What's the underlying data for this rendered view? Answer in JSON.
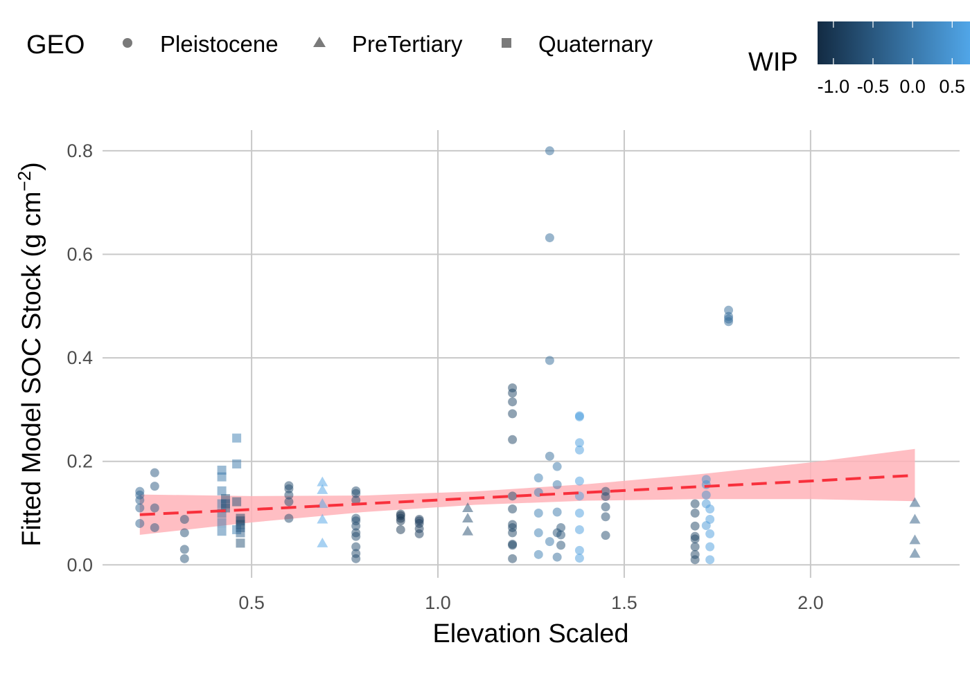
{
  "chart_data": {
    "type": "scatter",
    "xlabel": "Elevation Scaled",
    "ylabel_main": "Fitted Model SOC Stock (g cm",
    "ylabel_sup": "−2",
    "ylabel_close": ")",
    "xlim": [
      0.1,
      2.4
    ],
    "ylim": [
      -0.025,
      0.84
    ],
    "x_ticks": [
      {
        "v": 0.5,
        "label": "0.5"
      },
      {
        "v": 1.0,
        "label": "1.0"
      },
      {
        "v": 1.5,
        "label": "1.5"
      },
      {
        "v": 2.0,
        "label": "2.0"
      }
    ],
    "y_ticks": [
      {
        "v": 0.0,
        "label": "0.0"
      },
      {
        "v": 0.2,
        "label": "0.2"
      },
      {
        "v": 0.4,
        "label": "0.4"
      },
      {
        "v": 0.6,
        "label": "0.6"
      },
      {
        "v": 0.8,
        "label": "0.8"
      }
    ],
    "grid": true,
    "legend": {
      "position": "top",
      "shape_title": "GEO",
      "shape_entries": [
        {
          "label": "Pleistocene",
          "shape": "circle"
        },
        {
          "label": "PreTertiary",
          "shape": "triangle"
        },
        {
          "label": "Quaternary",
          "shape": "square"
        }
      ],
      "color_title": "WIP",
      "color_ticks": [
        {
          "v": -1.0,
          "label": "-1.0"
        },
        {
          "v": -0.5,
          "label": "-0.5"
        },
        {
          "v": 0.0,
          "label": "0.0"
        },
        {
          "v": 0.5,
          "label": "0.5"
        }
      ],
      "color_range": [
        -1.2,
        0.9
      ]
    },
    "colors": {
      "low": "#132B43",
      "high": "#56B1F7",
      "trend": "#F8303C",
      "ribbon": "#FFB3B8",
      "grid": "#C8C8C8"
    },
    "trend": {
      "x": [
        0.2,
        0.5,
        0.8,
        1.1,
        1.4,
        1.7,
        2.0,
        2.28
      ],
      "y": [
        0.097,
        0.107,
        0.118,
        0.129,
        0.14,
        0.151,
        0.162,
        0.173
      ],
      "lower": [
        0.058,
        0.082,
        0.102,
        0.116,
        0.124,
        0.127,
        0.127,
        0.123
      ],
      "upper": [
        0.136,
        0.133,
        0.134,
        0.142,
        0.156,
        0.175,
        0.198,
        0.224
      ]
    },
    "series": [
      {
        "geo": "Pleistocene",
        "points": [
          [
            0.2,
            0.142,
            -0.3
          ],
          [
            0.2,
            0.135,
            -0.3
          ],
          [
            0.2,
            0.125,
            -0.3
          ],
          [
            0.2,
            0.11,
            -0.3
          ],
          [
            0.2,
            0.08,
            -0.3
          ],
          [
            0.24,
            0.178,
            -0.5
          ],
          [
            0.24,
            0.152,
            -0.5
          ],
          [
            0.24,
            0.11,
            -0.5
          ],
          [
            0.24,
            0.072,
            -0.5
          ],
          [
            0.32,
            0.088,
            -0.6
          ],
          [
            0.32,
            0.062,
            -0.6
          ],
          [
            0.32,
            0.03,
            -0.6
          ],
          [
            0.32,
            0.012,
            -0.6
          ],
          [
            0.6,
            0.153,
            -0.7
          ],
          [
            0.6,
            0.147,
            -0.7
          ],
          [
            0.6,
            0.135,
            -0.7
          ],
          [
            0.6,
            0.122,
            -0.7
          ],
          [
            0.6,
            0.09,
            -0.7
          ],
          [
            0.78,
            0.143,
            -0.7
          ],
          [
            0.78,
            0.138,
            -0.7
          ],
          [
            0.78,
            0.125,
            -0.7
          ],
          [
            0.78,
            0.09,
            -0.7
          ],
          [
            0.78,
            0.085,
            -0.7
          ],
          [
            0.78,
            0.075,
            -0.7
          ],
          [
            0.78,
            0.062,
            -0.7
          ],
          [
            0.78,
            0.055,
            -0.7
          ],
          [
            0.78,
            0.035,
            -0.7
          ],
          [
            0.78,
            0.022,
            -0.7
          ],
          [
            0.78,
            0.012,
            -0.7
          ],
          [
            0.9,
            0.098,
            -1.0
          ],
          [
            0.9,
            0.095,
            -1.0
          ],
          [
            0.9,
            0.09,
            -1.0
          ],
          [
            0.9,
            0.085,
            -1.0
          ],
          [
            0.9,
            0.068,
            -1.0
          ],
          [
            0.95,
            0.088,
            -0.9
          ],
          [
            0.95,
            0.085,
            -0.9
          ],
          [
            0.95,
            0.08,
            -0.9
          ],
          [
            0.95,
            0.07,
            -0.9
          ],
          [
            0.95,
            0.06,
            -0.9
          ],
          [
            1.2,
            0.342,
            -0.8
          ],
          [
            1.2,
            0.332,
            -0.8
          ],
          [
            1.2,
            0.315,
            -0.8
          ],
          [
            1.2,
            0.292,
            -0.8
          ],
          [
            1.2,
            0.242,
            -0.8
          ],
          [
            1.2,
            0.133,
            -0.8
          ],
          [
            1.2,
            0.108,
            -0.8
          ],
          [
            1.2,
            0.078,
            -0.8
          ],
          [
            1.2,
            0.072,
            -0.8
          ],
          [
            1.2,
            0.062,
            -0.8
          ],
          [
            1.2,
            0.04,
            -0.8
          ],
          [
            1.2,
            0.038,
            -0.8
          ],
          [
            1.2,
            0.012,
            -0.8
          ],
          [
            1.3,
            0.8,
            -0.2
          ],
          [
            1.3,
            0.632,
            -0.2
          ],
          [
            1.3,
            0.395,
            -0.2
          ],
          [
            1.3,
            0.21,
            -0.2
          ],
          [
            1.27,
            0.168,
            0.1
          ],
          [
            1.27,
            0.14,
            0.1
          ],
          [
            1.27,
            0.1,
            0.1
          ],
          [
            1.27,
            0.062,
            0.1
          ],
          [
            1.27,
            0.02,
            0.1
          ],
          [
            1.32,
            0.19,
            0.0
          ],
          [
            1.32,
            0.155,
            0.0
          ],
          [
            1.32,
            0.102,
            0.0
          ],
          [
            1.3,
            0.045,
            0.0
          ],
          [
            1.33,
            0.072,
            -0.6
          ],
          [
            1.33,
            0.058,
            -0.6
          ],
          [
            1.33,
            0.038,
            -0.6
          ],
          [
            1.32,
            0.062,
            -0.6
          ],
          [
            1.32,
            0.015,
            -0.2
          ],
          [
            1.38,
            0.288,
            0.6
          ],
          [
            1.38,
            0.286,
            0.6
          ],
          [
            1.38,
            0.236,
            0.6
          ],
          [
            1.38,
            0.222,
            0.6
          ],
          [
            1.38,
            0.162,
            0.6
          ],
          [
            1.38,
            0.133,
            0.6
          ],
          [
            1.38,
            0.1,
            0.6
          ],
          [
            1.38,
            0.068,
            0.6
          ],
          [
            1.38,
            0.028,
            0.6
          ],
          [
            1.38,
            0.013,
            0.6
          ],
          [
            1.45,
            0.142,
            -0.7
          ],
          [
            1.45,
            0.132,
            -0.7
          ],
          [
            1.45,
            0.112,
            -0.7
          ],
          [
            1.45,
            0.093,
            -0.7
          ],
          [
            1.45,
            0.057,
            -0.7
          ],
          [
            1.69,
            0.118,
            -0.8
          ],
          [
            1.69,
            0.1,
            -0.8
          ],
          [
            1.69,
            0.075,
            -0.8
          ],
          [
            1.69,
            0.055,
            -0.8
          ],
          [
            1.69,
            0.05,
            -0.8
          ],
          [
            1.69,
            0.035,
            -0.8
          ],
          [
            1.69,
            0.02,
            -0.8
          ],
          [
            1.69,
            0.01,
            -0.8
          ],
          [
            1.72,
            0.165,
            0.4
          ],
          [
            1.72,
            0.155,
            0.4
          ],
          [
            1.72,
            0.135,
            0.4
          ],
          [
            1.72,
            0.118,
            0.5
          ],
          [
            1.72,
            0.076,
            0.5
          ],
          [
            1.73,
            0.108,
            0.6
          ],
          [
            1.73,
            0.088,
            0.6
          ],
          [
            1.73,
            0.06,
            0.6
          ],
          [
            1.73,
            0.035,
            0.6
          ],
          [
            1.73,
            0.01,
            0.6
          ],
          [
            1.78,
            0.492,
            -0.2
          ],
          [
            1.78,
            0.48,
            -0.2
          ],
          [
            1.78,
            0.475,
            -0.2
          ],
          [
            1.78,
            0.47,
            -0.2
          ]
        ]
      },
      {
        "geo": "PreTertiary",
        "points": [
          [
            0.69,
            0.16,
            0.7
          ],
          [
            0.69,
            0.145,
            0.7
          ],
          [
            0.69,
            0.118,
            0.7
          ],
          [
            0.69,
            0.088,
            0.7
          ],
          [
            0.69,
            0.042,
            0.7
          ],
          [
            1.08,
            0.11,
            -0.7
          ],
          [
            1.08,
            0.09,
            -0.7
          ],
          [
            1.08,
            0.065,
            -0.7
          ],
          [
            2.28,
            0.12,
            -0.5
          ],
          [
            2.28,
            0.088,
            -0.5
          ],
          [
            2.28,
            0.048,
            -0.5
          ],
          [
            2.28,
            0.022,
            -0.5
          ]
        ]
      },
      {
        "geo": "Quaternary",
        "points": [
          [
            0.42,
            0.183,
            0.0
          ],
          [
            0.42,
            0.17,
            0.0
          ],
          [
            0.42,
            0.143,
            0.0
          ],
          [
            0.42,
            0.118,
            0.0
          ],
          [
            0.42,
            0.1,
            -0.2
          ],
          [
            0.42,
            0.082,
            0.0
          ],
          [
            0.42,
            0.065,
            0.0
          ],
          [
            0.43,
            0.128,
            -0.6
          ],
          [
            0.43,
            0.118,
            -0.5
          ],
          [
            0.43,
            0.11,
            -0.6
          ],
          [
            0.46,
            0.245,
            0.1
          ],
          [
            0.46,
            0.195,
            0.0
          ],
          [
            0.46,
            0.122,
            -0.6
          ],
          [
            0.46,
            0.068,
            0.1
          ],
          [
            0.47,
            0.09,
            -0.8
          ],
          [
            0.47,
            0.085,
            -0.8
          ],
          [
            0.47,
            0.078,
            -0.8
          ],
          [
            0.47,
            0.072,
            -0.5
          ],
          [
            0.47,
            0.062,
            -0.4
          ],
          [
            0.47,
            0.042,
            -0.6
          ]
        ]
      }
    ]
  }
}
